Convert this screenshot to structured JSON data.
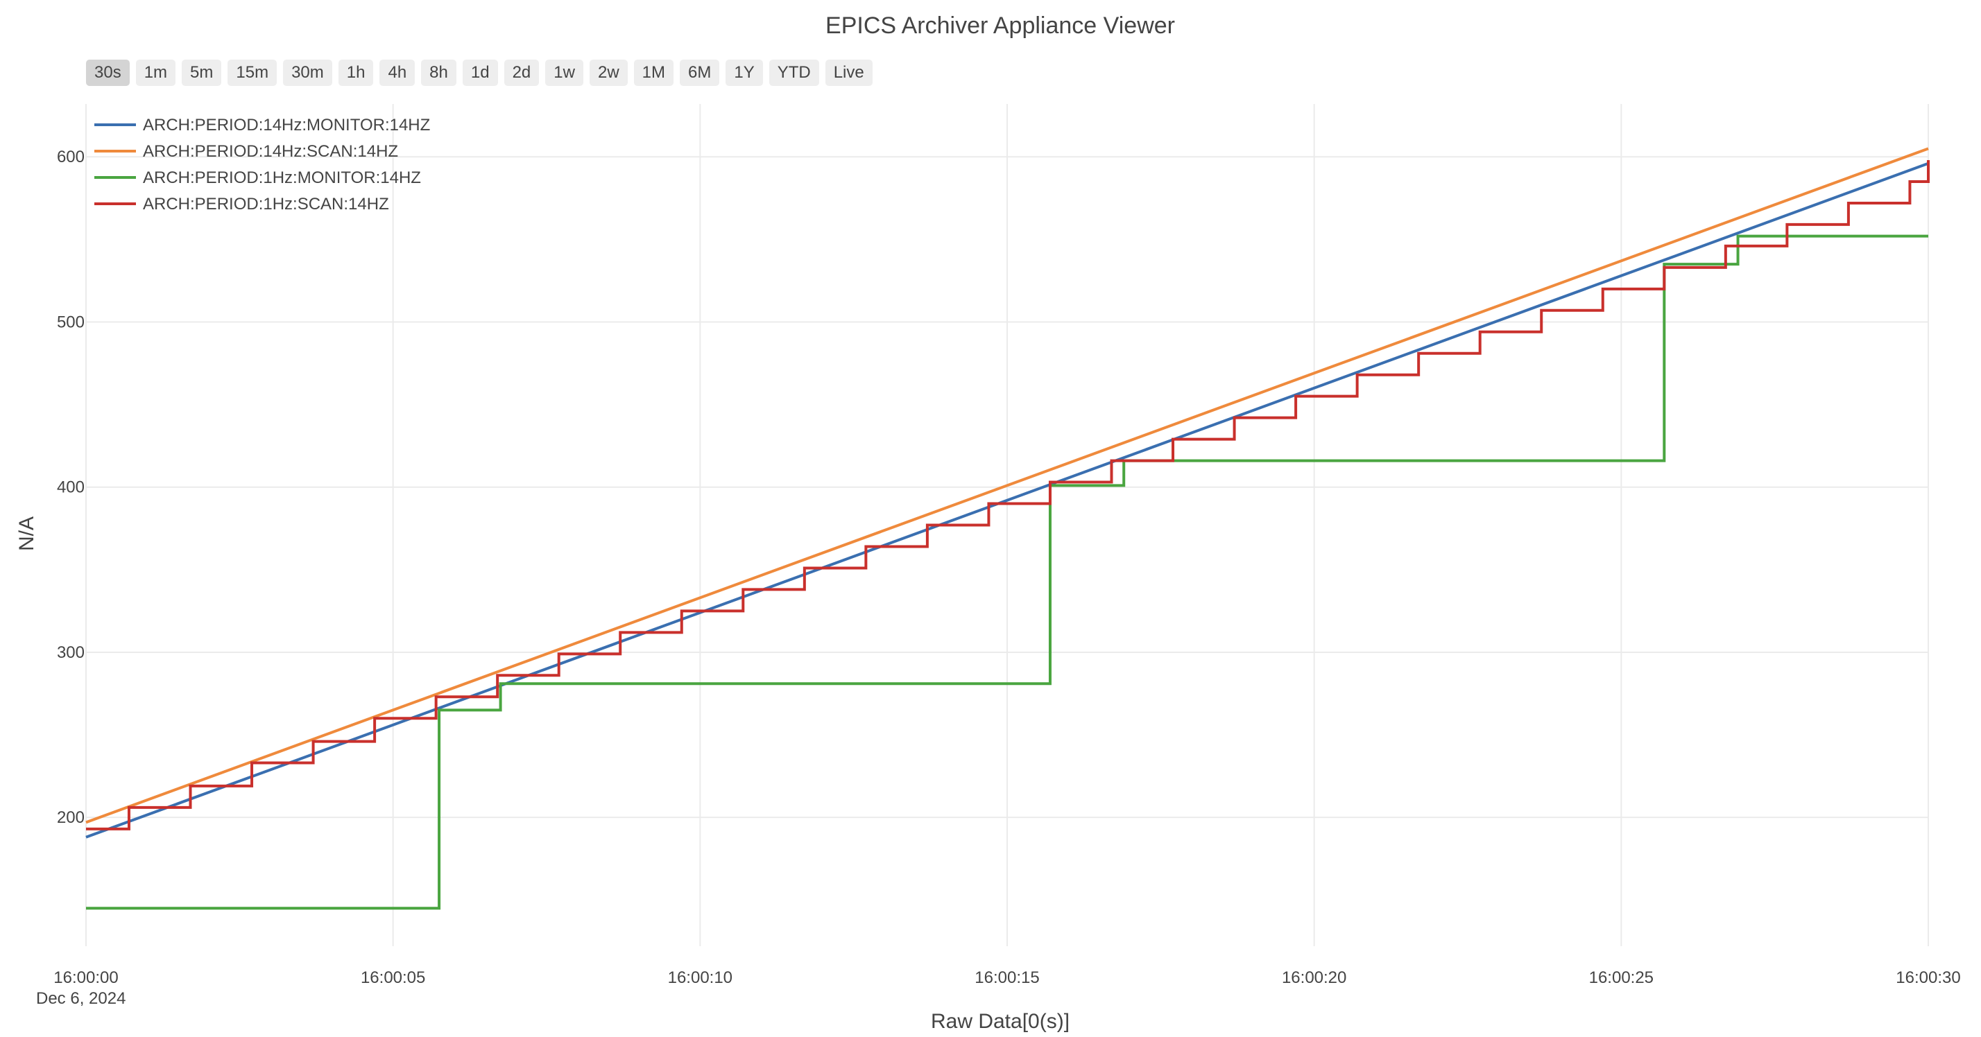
{
  "chart_data": {
    "type": "line",
    "title": "EPICS Archiver Appliance Viewer",
    "xlabel": "Raw Data[0(s)]",
    "ylabel": "N/A",
    "x_range": [
      "16:00:00",
      "16:00:30"
    ],
    "x_ticks": [
      "16:00:00",
      "16:00:05",
      "16:00:10",
      "16:00:15",
      "16:00:20",
      "16:00:25",
      "16:00:30"
    ],
    "x_date_label": "Dec 6, 2024",
    "ylim": [
      122,
      632
    ],
    "y_ticks": [
      200,
      300,
      400,
      500,
      600
    ],
    "grid": true,
    "legend_position": "top-left",
    "series": [
      {
        "name": "ARCH:PERIOD:14Hz:MONITOR:14HZ",
        "color": "#3a6fb0",
        "line_shape": "linear",
        "x": [
          "16:00:00",
          "16:00:30"
        ],
        "y": [
          188,
          596
        ]
      },
      {
        "name": "ARCH:PERIOD:14Hz:SCAN:14HZ",
        "color": "#ef8a3c",
        "line_shape": "linear",
        "x": [
          "16:00:00",
          "16:00:30"
        ],
        "y": [
          197,
          605
        ]
      },
      {
        "name": "ARCH:PERIOD:1Hz:MONITOR:14HZ",
        "color": "#4aa540",
        "line_shape": "hv",
        "x": [
          "16:00:00",
          "16:00:05.75",
          "16:00:06.75",
          "16:00:15.7",
          "16:00:16.9",
          "16:00:25.7",
          "16:00:26.9",
          "16:00:30"
        ],
        "y": [
          145,
          265,
          281,
          401,
          416,
          535,
          552,
          552
        ]
      },
      {
        "name": "ARCH:PERIOD:1Hz:SCAN:14HZ",
        "color": "#c9302c",
        "line_shape": "hv",
        "x": [
          "16:00:00",
          "16:00:00.7",
          "16:00:01.7",
          "16:00:02.7",
          "16:00:03.7",
          "16:00:04.7",
          "16:00:05.7",
          "16:00:06.7",
          "16:00:07.7",
          "16:00:08.7",
          "16:00:09.7",
          "16:00:10.7",
          "16:00:11.7",
          "16:00:12.7",
          "16:00:13.7",
          "16:00:14.7",
          "16:00:15.7",
          "16:00:16.7",
          "16:00:17.7",
          "16:00:18.7",
          "16:00:19.7",
          "16:00:20.7",
          "16:00:21.7",
          "16:00:22.7",
          "16:00:23.7",
          "16:00:24.7",
          "16:00:25.7",
          "16:00:26.7",
          "16:00:27.7",
          "16:00:28.7",
          "16:00:29.7",
          "16:00:30"
        ],
        "y": [
          193,
          206,
          219,
          233,
          246,
          260,
          273,
          286,
          299,
          312,
          325,
          338,
          351,
          364,
          377,
          390,
          403,
          416,
          429,
          442,
          455,
          468,
          481,
          494,
          507,
          520,
          533,
          546,
          559,
          572,
          585,
          598
        ]
      }
    ]
  },
  "range_buttons": [
    {
      "label": "30s",
      "active": true
    },
    {
      "label": "1m",
      "active": false
    },
    {
      "label": "5m",
      "active": false
    },
    {
      "label": "15m",
      "active": false
    },
    {
      "label": "30m",
      "active": false
    },
    {
      "label": "1h",
      "active": false
    },
    {
      "label": "4h",
      "active": false
    },
    {
      "label": "8h",
      "active": false
    },
    {
      "label": "1d",
      "active": false
    },
    {
      "label": "2d",
      "active": false
    },
    {
      "label": "1w",
      "active": false
    },
    {
      "label": "2w",
      "active": false
    },
    {
      "label": "1M",
      "active": false
    },
    {
      "label": "6M",
      "active": false
    },
    {
      "label": "1Y",
      "active": false
    },
    {
      "label": "YTD",
      "active": false
    },
    {
      "label": "Live",
      "active": false
    }
  ]
}
